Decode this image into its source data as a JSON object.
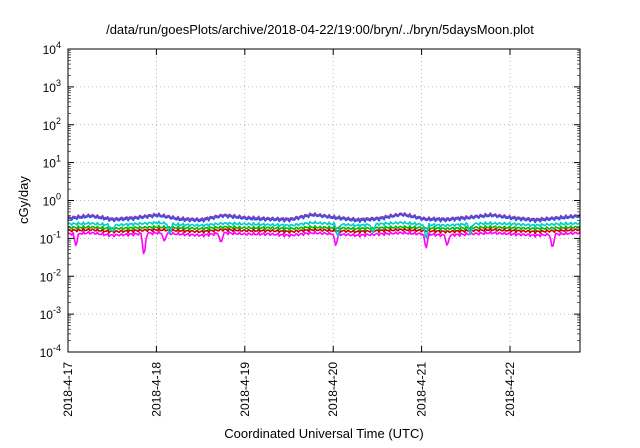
{
  "chart_data": {
    "type": "line",
    "title": "/data/run/goesPlots/archive/2018-04-22/19:00/bryn/../bryn/5daysMoon.plot",
    "xlabel": "Coordinated Universal Time (UTC)",
    "ylabel": "cGy/day",
    "y_scale": "log",
    "ylim_exponents": [
      -4,
      4
    ],
    "y_ticks": [
      {
        "base": "10",
        "exp": "-4"
      },
      {
        "base": "10",
        "exp": "-3"
      },
      {
        "base": "10",
        "exp": "-2"
      },
      {
        "base": "10",
        "exp": "-1"
      },
      {
        "base": "10",
        "exp": "0"
      },
      {
        "base": "10",
        "exp": "1"
      },
      {
        "base": "10",
        "exp": "2"
      },
      {
        "base": "10",
        "exp": "3"
      },
      {
        "base": "10",
        "exp": "4"
      }
    ],
    "x_ticks": [
      "2018-4-17",
      "2018-4-18",
      "2018-4-19",
      "2018-4-20",
      "2018-4-21",
      "2018-4-22"
    ],
    "xlim": [
      "2018-04-17T00:00Z",
      "2018-04-22T19:00Z"
    ],
    "grid": true,
    "legend": "none",
    "series": [
      {
        "color": "#ff00ff",
        "level": 0.13,
        "values": [
          0.13,
          0.14,
          0.12,
          0.13,
          0.14,
          0.13,
          0.12,
          0.14,
          0.13,
          0.13,
          0.12,
          0.14,
          0.13,
          0.12,
          0.13,
          0.14,
          0.13,
          0.12,
          0.13,
          0.14,
          0.13,
          0.12,
          0.13,
          0.14
        ],
        "dips": [
          [
            0.09,
            0.06
          ],
          [
            0.86,
            0.03
          ],
          [
            1.09,
            0.08
          ],
          [
            1.73,
            0.07
          ],
          [
            3.03,
            0.06
          ],
          [
            4.05,
            0.05
          ],
          [
            4.29,
            0.06
          ],
          [
            5.48,
            0.05
          ]
        ]
      },
      {
        "color": "#cc0000",
        "level": 0.16,
        "values": [
          0.16,
          0.17,
          0.15,
          0.16,
          0.17,
          0.16,
          0.15,
          0.17,
          0.16,
          0.16,
          0.15,
          0.17,
          0.16,
          0.15,
          0.16,
          0.17,
          0.16,
          0.15,
          0.16,
          0.17,
          0.16,
          0.15,
          0.16,
          0.17
        ]
      },
      {
        "color": "#00bb00",
        "level": 0.19,
        "values": [
          0.19,
          0.2,
          0.18,
          0.19,
          0.2,
          0.19,
          0.18,
          0.2,
          0.19,
          0.19,
          0.18,
          0.2,
          0.19,
          0.18,
          0.19,
          0.2,
          0.19,
          0.18,
          0.19,
          0.2,
          0.19,
          0.18,
          0.19,
          0.2
        ]
      },
      {
        "color": "#00cccc",
        "level": 0.24,
        "values": [
          0.24,
          0.25,
          0.22,
          0.24,
          0.26,
          0.23,
          0.22,
          0.25,
          0.24,
          0.23,
          0.22,
          0.26,
          0.24,
          0.22,
          0.24,
          0.26,
          0.23,
          0.22,
          0.24,
          0.25,
          0.24,
          0.22,
          0.24,
          0.25
        ],
        "dips": [
          [
            0.5,
            0.14
          ],
          [
            1.15,
            0.12
          ],
          [
            3.05,
            0.1
          ],
          [
            3.45,
            0.13
          ],
          [
            4.05,
            0.09
          ],
          [
            4.55,
            0.12
          ]
        ]
      },
      {
        "color": "#2255ee",
        "level": 0.33,
        "values": [
          0.32,
          0.38,
          0.3,
          0.33,
          0.4,
          0.31,
          0.29,
          0.39,
          0.33,
          0.31,
          0.3,
          0.41,
          0.34,
          0.29,
          0.32,
          0.42,
          0.31,
          0.3,
          0.34,
          0.4,
          0.33,
          0.29,
          0.33,
          0.38
        ]
      },
      {
        "color": "#7a3fbf",
        "level": 0.36,
        "values": [
          0.35,
          0.41,
          0.33,
          0.36,
          0.43,
          0.34,
          0.32,
          0.42,
          0.36,
          0.34,
          0.33,
          0.44,
          0.37,
          0.32,
          0.35,
          0.45,
          0.34,
          0.33,
          0.37,
          0.43,
          0.36,
          0.32,
          0.36,
          0.41
        ]
      }
    ]
  }
}
